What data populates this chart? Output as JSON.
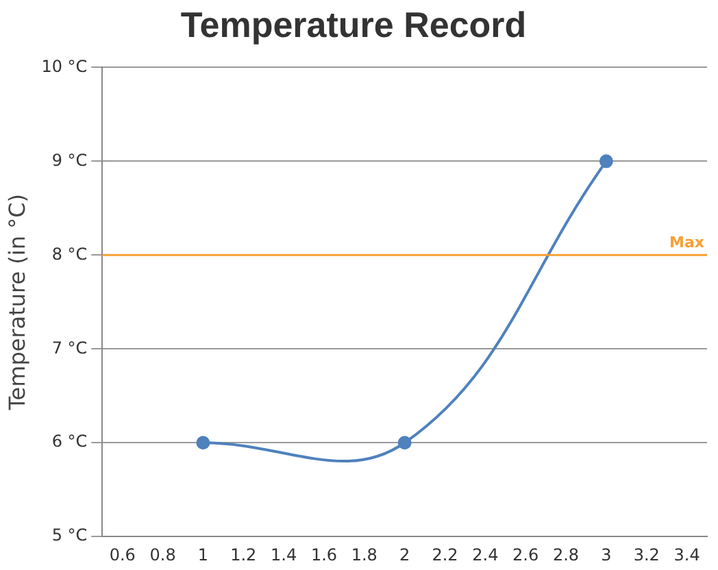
{
  "chart_data": {
    "type": "line",
    "title": "Temperature Record",
    "ylabel": "Temperature (in °C)",
    "x": [
      1,
      2,
      3
    ],
    "series": [
      {
        "color": "#4f81bd",
        "values": [
          6,
          6,
          9
        ]
      }
    ],
    "xlim": [
      0.5,
      3.5
    ],
    "xticks": [
      0.6,
      0.8,
      1,
      1.2,
      1.4,
      1.6,
      1.8,
      2,
      2.2,
      2.4,
      2.6,
      2.8,
      3,
      3.2,
      3.4
    ],
    "ylim": [
      5,
      10
    ],
    "yticks": [
      {
        "value": 5,
        "label": "5 °C"
      },
      {
        "value": 6,
        "label": "6 °C"
      },
      {
        "value": 7,
        "label": "7 °C"
      },
      {
        "value": 8,
        "label": "8 °C"
      },
      {
        "value": 9,
        "label": "9 °C"
      },
      {
        "value": 10,
        "label": "10 °C"
      }
    ],
    "ref_lines": [
      {
        "axis": "y",
        "value": 8,
        "label": "Max",
        "color": "#f7a035"
      }
    ],
    "grid": "y",
    "legend": false,
    "marker": "circle",
    "line_style": "solid"
  }
}
